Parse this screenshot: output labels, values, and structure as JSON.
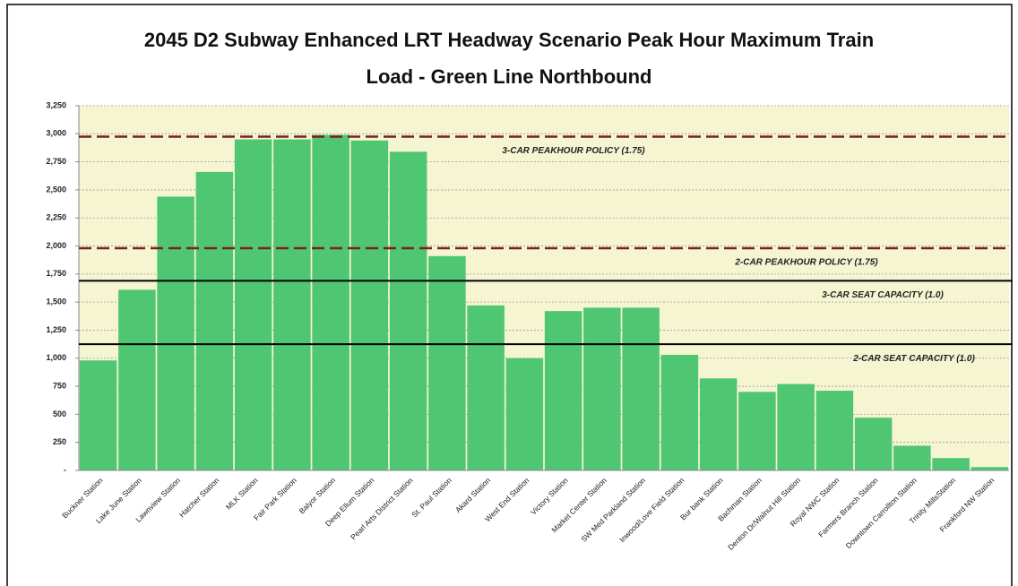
{
  "chart_data": {
    "type": "bar",
    "title": [
      "2045 D2 Subway Enhanced LRT Headway Scenario Peak Hour Maximum Train",
      "Load - Green Line Northbound"
    ],
    "categories": [
      "Buckner Station",
      "Lake June Station",
      "Lawnview Station",
      "Hatcher Station",
      "MLK Station",
      "Fair Park Station",
      "Balyor Station",
      "Deep Ellum Station",
      "Pearl Arts District Station",
      "St. Paul Station",
      "Akard Station",
      "West End Station",
      "Victory Station",
      "Market Center Station",
      "SW Med Parkland Station",
      "Inwood/Love Field Station",
      "Bur bank Station",
      "Bachman Station",
      "Denton Dr/Walnut Hill Station",
      "Royal NWC Station",
      "Farmers Branch Station",
      "Downtown Carrollton Station",
      "Trinity MillsStation",
      "Frankford NW Station"
    ],
    "values": [
      980,
      1610,
      2440,
      2660,
      2950,
      2950,
      2990,
      2940,
      2840,
      1910,
      1470,
      1000,
      1420,
      1450,
      1450,
      1030,
      820,
      700,
      770,
      710,
      470,
      220,
      110,
      30
    ],
    "color": "#4fc672",
    "ylim": [
      0,
      3250
    ],
    "yticks": [
      {
        "value": 0,
        "label": "-"
      },
      {
        "value": 250,
        "label": "250"
      },
      {
        "value": 500,
        "label": "500"
      },
      {
        "value": 750,
        "label": "750"
      },
      {
        "value": 1000,
        "label": "1,000"
      },
      {
        "value": 1250,
        "label": "1,250"
      },
      {
        "value": 1500,
        "label": "1,500"
      },
      {
        "value": 1750,
        "label": "1,750"
      },
      {
        "value": 2000,
        "label": "2,000"
      },
      {
        "value": 2250,
        "label": "2,250"
      },
      {
        "value": 2500,
        "label": "2,500"
      },
      {
        "value": 2750,
        "label": "2,750"
      },
      {
        "value": 3000,
        "label": "3,000"
      },
      {
        "value": 3250,
        "label": "3,250"
      }
    ],
    "grid": true,
    "plot_background": "#f6f5d2",
    "reference_lines": [
      {
        "value": 2975,
        "label": "3-CAR PEAKHOUR POLICY (1.75)",
        "style": "dashed",
        "color": "#7a1f1f"
      },
      {
        "value": 1980,
        "label": "2-CAR PEAKHOUR POLICY (1.75)",
        "style": "dashed",
        "color": "#7a1f1f"
      },
      {
        "value": 1690,
        "label": "3-CAR SEAT CAPACITY (1.0)",
        "style": "solid",
        "color": "#000000"
      },
      {
        "value": 1125,
        "label": "2-CAR SEAT CAPACITY (1.0)",
        "style": "solid",
        "color": "#000000"
      }
    ]
  }
}
